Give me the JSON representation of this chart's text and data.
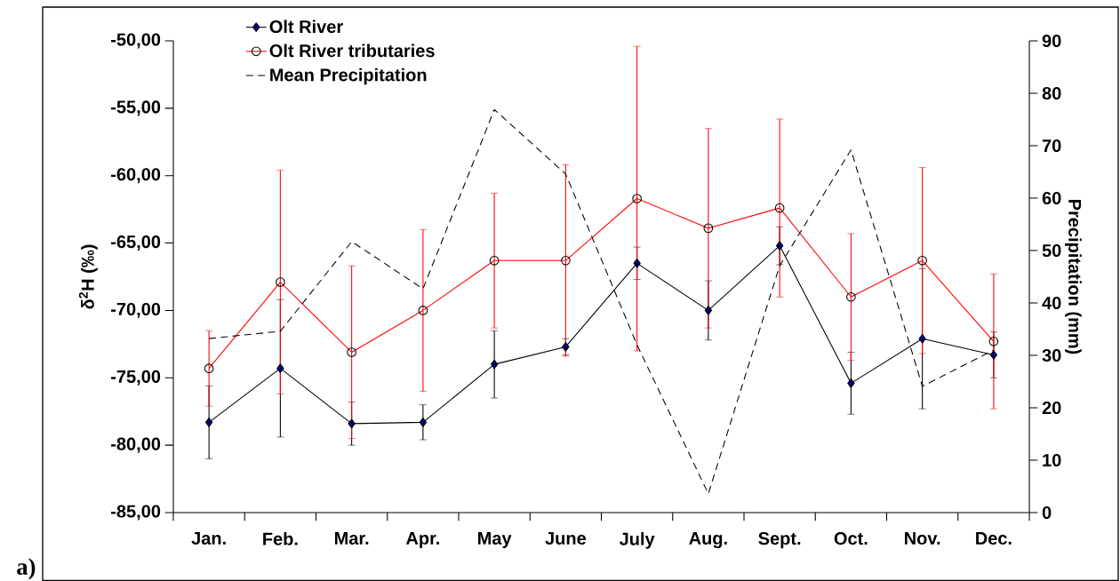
{
  "chart_data": {
    "type": "line",
    "categories": [
      "Jan.",
      "Feb.",
      "Mar.",
      "Apr.",
      "May",
      "June",
      "July",
      "Aug.",
      "Sept.",
      "Oct.",
      "Nov.",
      "Dec."
    ],
    "series": [
      {
        "name": "Olt River",
        "color": "#000080",
        "marker": "diamond",
        "values": [
          -78.3,
          -74.3,
          -78.4,
          -78.3,
          -74.0,
          -72.7,
          -66.5,
          -70.0,
          -65.2,
          -75.4,
          -72.1,
          -73.3
        ],
        "errors": [
          2.7,
          5.1,
          1.6,
          1.3,
          2.5,
          0.6,
          1.2,
          2.2,
          1.4,
          2.3,
          5.2,
          1.7
        ]
      },
      {
        "name": "Olt River tributaries",
        "color": "#ff0000",
        "marker": "circle",
        "values": [
          -74.3,
          -67.9,
          -73.1,
          -70.0,
          -66.3,
          -66.3,
          -61.7,
          -63.9,
          -62.4,
          -69.0,
          -66.3,
          -72.3
        ],
        "errors": [
          2.8,
          8.3,
          6.4,
          6.0,
          5.0,
          7.1,
          11.3,
          7.4,
          6.6,
          4.7,
          6.9,
          5.0
        ]
      },
      {
        "name": "Mean Precipitation",
        "color": "#000000",
        "axis": "y2",
        "line_style": "dashed",
        "values": [
          33.2,
          34.6,
          51.7,
          42.7,
          76.9,
          64.6,
          32.0,
          3.6,
          47.1,
          69.2,
          24.1,
          31.0
        ]
      }
    ],
    "ylabel": "δ$^{2}$H (‰)",
    "y2label": "Precipitation (mm)",
    "ylim": [
      -85,
      -50
    ],
    "yticks": [
      {
        "value": -85,
        "label": "-85,00"
      },
      {
        "value": -80,
        "label": "-80,00"
      },
      {
        "value": -75,
        "label": "-75,00"
      },
      {
        "value": -70,
        "label": "-70,00"
      },
      {
        "value": -65,
        "label": "-65,00"
      },
      {
        "value": -60,
        "label": "-60,00"
      },
      {
        "value": -55,
        "label": "-55,00"
      },
      {
        "value": -50,
        "label": "-50,00"
      }
    ],
    "y2lim": [
      0,
      90
    ],
    "y2ticks": [
      0,
      10,
      20,
      30,
      40,
      50,
      60,
      70,
      80,
      90
    ],
    "legend": "top left",
    "annotations": [
      "a)"
    ]
  }
}
